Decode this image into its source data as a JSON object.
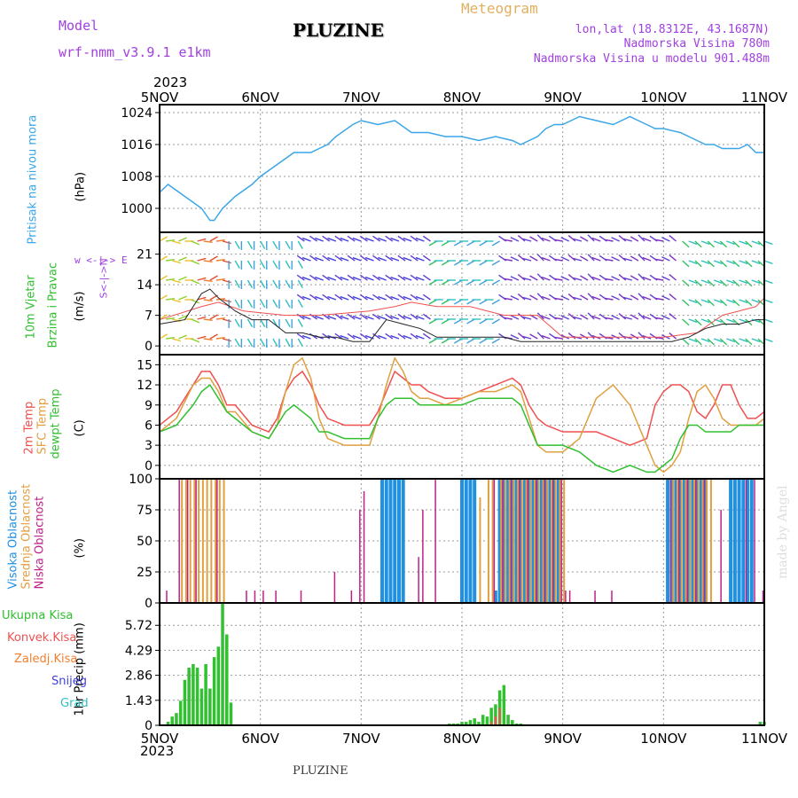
{
  "header": {
    "model_label": "Model",
    "model_name": "wrf-nmm_v3.9.1 e1km",
    "title": "PLUZINE",
    "meteogram": "Meteogram",
    "lonlat": "lon,lat (18.8312E, 43.1687N)",
    "elevation": "Nadmorska Visina 780m",
    "model_elevation": "Nadmorska Visina u modelu 901.488m",
    "year_top": "2023",
    "year_bottom": "2023",
    "footer_title": "PLUZINE",
    "credit": "made by Angel"
  },
  "colors": {
    "pressure": "#3aa6e8",
    "wind": "#30c030",
    "t2m": "#f05050",
    "sfc": "#e0a040",
    "dewpt": "#30c030",
    "high_cloud": "#2090e0",
    "mid_cloud": "#e0a040",
    "low_cloud": "#c0208a",
    "total_precip": "#30c030",
    "conv_precip": "#f05050",
    "ice": "#f08030",
    "snow": "#4040e0",
    "hail": "#30c0c0"
  },
  "panels": {
    "pressure": {
      "label": "Pritisak na nivou mora",
      "unit": "(hPa)"
    },
    "wind": {
      "label1": "10m Vjetar",
      "label2": "Brzina i Pravac",
      "unit": "(m/s)",
      "dir_legend": "w <-|-> E",
      "dir_legend_ns": "S<-|->N"
    },
    "temp": {
      "label_t2m": "2m Temp",
      "label_sfc": "SFC Temp",
      "label_dew": "dewpt Temp",
      "unit": "(C)"
    },
    "cloud": {
      "label_high": "Visoka Oblacnost",
      "label_mid": "Srednja Oblacnost",
      "label_low": "Niska Oblacnost",
      "unit": "(%)"
    },
    "precip": {
      "label_total": "Ukupna Kisa",
      "label_conv": "Konvek.Kisa",
      "label_ice": "Zaledj.Kisa",
      "label_snow": "Snijeg",
      "label_hail": "Grad",
      "unit": "1hr Precip (mm)"
    }
  },
  "chart_data": [
    {
      "type": "line",
      "title": "Pritisak na nivou mora",
      "ylabel": "(hPa)",
      "x_ticks": [
        "5NOV",
        "6NOV",
        "7NOV",
        "8NOV",
        "9NOV",
        "10NOV",
        "11NOV"
      ],
      "xlim": [
        0,
        144
      ],
      "yticks": [
        "1000",
        "1008",
        "1016",
        "1024"
      ],
      "ylim": [
        994,
        1026
      ],
      "series": [
        {
          "name": "Pritisak na nivou mora",
          "x": [
            0,
            2,
            6,
            10,
            12,
            13,
            15,
            18,
            22,
            24,
            28,
            32,
            36,
            40,
            42,
            46,
            48,
            52,
            56,
            60,
            64,
            68,
            70,
            72,
            76,
            80,
            84,
            86,
            88,
            90,
            92,
            94,
            96,
            98,
            100,
            104,
            108,
            110,
            112,
            114,
            116,
            118,
            120,
            124,
            128,
            130,
            132,
            134,
            136,
            138,
            140,
            142,
            144
          ],
          "values": [
            1004,
            1006,
            1003,
            1000,
            997,
            997,
            1000,
            1003,
            1006,
            1008,
            1011,
            1014,
            1014,
            1016,
            1018,
            1021,
            1022,
            1021,
            1022,
            1019,
            1019,
            1018,
            1018,
            1018,
            1017,
            1018,
            1017,
            1016,
            1017,
            1018,
            1020,
            1021,
            1021,
            1022,
            1023,
            1022,
            1021,
            1022,
            1023,
            1022,
            1021,
            1020,
            1020,
            1019,
            1017,
            1016,
            1016,
            1015,
            1015,
            1015,
            1016,
            1014,
            1014
          ]
        }
      ]
    },
    {
      "type": "line",
      "title": "10m Vjetar Brzina i Pravac",
      "ylabel": "(m/s)",
      "yticks": [
        "0",
        "7",
        "14",
        "21"
      ],
      "ylim": [
        -2,
        26
      ],
      "series": [
        {
          "name": "speed",
          "x": [
            0,
            6,
            10,
            12,
            14,
            18,
            22,
            26,
            30,
            34,
            38,
            42,
            46,
            50,
            54,
            58,
            62,
            66,
            70,
            74,
            78,
            82,
            86,
            90,
            94,
            98,
            102,
            106,
            110,
            114,
            118,
            122,
            126,
            130,
            134,
            138,
            142,
            144
          ],
          "values": [
            5,
            6,
            12,
            13,
            11,
            8,
            6,
            6,
            3,
            3,
            2,
            2,
            1,
            1,
            6,
            5,
            4,
            2,
            2,
            2,
            2,
            2,
            1,
            1,
            1,
            1,
            1,
            1,
            1,
            1,
            1,
            1,
            2,
            4,
            5,
            5,
            6,
            6
          ]
        },
        {
          "name": "gust",
          "x": [
            0,
            10,
            14,
            20,
            30,
            38,
            50,
            56,
            60,
            66,
            74,
            82,
            90,
            96,
            104,
            112,
            120,
            128,
            134,
            138,
            142,
            144
          ],
          "values": [
            6,
            9,
            10,
            8,
            7,
            7,
            8,
            9,
            10,
            9,
            9,
            7,
            7,
            2,
            2,
            2,
            2,
            3,
            7,
            8,
            9,
            11
          ]
        }
      ]
    },
    {
      "type": "line",
      "title": "Temp",
      "ylabel": "(C)",
      "yticks": [
        "0",
        "3",
        "6",
        "9",
        "12",
        "15"
      ],
      "ylim": [
        -2,
        16.5
      ],
      "series": [
        {
          "name": "2m Temp",
          "x": [
            0,
            4,
            8,
            10,
            12,
            14,
            16,
            18,
            22,
            26,
            28,
            30,
            32,
            34,
            36,
            38,
            40,
            44,
            48,
            50,
            52,
            54,
            56,
            58,
            60,
            62,
            64,
            68,
            72,
            76,
            80,
            84,
            86,
            88,
            90,
            92,
            96,
            100,
            104,
            108,
            112,
            116,
            118,
            120,
            122,
            124,
            126,
            128,
            130,
            132,
            134,
            136,
            138,
            140,
            142,
            144
          ],
          "values": [
            6,
            8,
            12,
            14,
            14,
            12,
            9,
            9,
            6,
            5,
            7,
            11,
            13,
            14,
            12,
            9,
            7,
            6,
            6,
            6,
            8,
            11,
            14,
            13,
            12,
            12,
            11,
            10,
            10,
            11,
            12,
            13,
            12,
            9,
            7,
            6,
            5,
            5,
            5,
            4,
            3,
            4,
            9,
            11,
            12,
            12,
            11,
            8,
            7,
            9,
            12,
            12,
            9,
            7,
            7,
            8
          ]
        },
        {
          "name": "SFC Temp",
          "x": [
            0,
            4,
            8,
            10,
            12,
            14,
            16,
            18,
            22,
            26,
            28,
            30,
            32,
            34,
            36,
            38,
            40,
            44,
            48,
            50,
            52,
            54,
            56,
            58,
            60,
            62,
            64,
            68,
            72,
            76,
            80,
            84,
            86,
            88,
            90,
            92,
            96,
            100,
            104,
            108,
            112,
            116,
            118,
            120,
            122,
            124,
            126,
            128,
            130,
            132,
            134,
            136,
            138,
            140,
            142,
            144
          ],
          "values": [
            5,
            7,
            12,
            13,
            13,
            11,
            8,
            8,
            5,
            4,
            6,
            11,
            15,
            16,
            13,
            7,
            4,
            3,
            3,
            3,
            7,
            12,
            16,
            14,
            11,
            10,
            10,
            9,
            10,
            11,
            11,
            12,
            11,
            7,
            3,
            2,
            2,
            4,
            10,
            12,
            9,
            3,
            0,
            -1,
            0,
            2,
            7,
            11,
            12,
            10,
            7,
            6,
            6,
            6,
            6,
            7
          ]
        },
        {
          "name": "dewpt Temp",
          "x": [
            0,
            4,
            8,
            10,
            12,
            14,
            16,
            18,
            22,
            26,
            28,
            30,
            32,
            34,
            36,
            38,
            40,
            44,
            48,
            50,
            52,
            54,
            56,
            58,
            60,
            62,
            64,
            68,
            72,
            76,
            80,
            84,
            86,
            88,
            90,
            92,
            96,
            100,
            104,
            108,
            112,
            116,
            118,
            120,
            122,
            124,
            126,
            128,
            130,
            132,
            134,
            136,
            138,
            140,
            142,
            144
          ],
          "values": [
            5,
            6,
            9,
            11,
            12,
            10,
            8,
            7,
            5,
            4,
            6,
            8,
            9,
            8,
            7,
            5,
            5,
            4,
            4,
            4,
            7,
            9,
            10,
            10,
            10,
            9,
            9,
            9,
            9,
            10,
            10,
            10,
            9,
            6,
            3,
            3,
            3,
            2,
            0,
            -1,
            0,
            -1,
            -1,
            0,
            1,
            4,
            6,
            6,
            5,
            5,
            5,
            5,
            6,
            6,
            6,
            6
          ]
        }
      ]
    },
    {
      "type": "bar",
      "title": "Oblacnost",
      "ylabel": "(%)",
      "yticks": [
        "0",
        "25",
        "50",
        "75",
        "100"
      ],
      "ylim": [
        0,
        100
      ],
      "series": [
        {
          "name": "Visoka Oblacnost",
          "x": [
            53,
            54,
            55,
            56,
            57,
            58,
            72,
            73,
            74,
            75,
            80,
            81,
            82,
            83,
            84,
            85,
            86,
            87,
            88,
            89,
            90,
            91,
            92,
            93,
            94,
            95,
            121,
            122,
            123,
            124,
            125,
            126,
            127,
            128,
            129,
            130,
            136,
            137,
            138,
            139,
            140,
            141
          ],
          "values": [
            100,
            100,
            100,
            100,
            100,
            100,
            100,
            100,
            100,
            100,
            10,
            100,
            100,
            100,
            100,
            100,
            100,
            100,
            100,
            100,
            100,
            100,
            100,
            100,
            100,
            100,
            100,
            100,
            100,
            100,
            100,
            100,
            100,
            100,
            100,
            100,
            100,
            100,
            100,
            100,
            100,
            100
          ]
        },
        {
          "name": "Srednja Oblacnost",
          "x": [
            5,
            6,
            7,
            8,
            9,
            10,
            11,
            12,
            13,
            14,
            15,
            76,
            78,
            79,
            81,
            82,
            83,
            84,
            85,
            86,
            87,
            88,
            89,
            90,
            91,
            92,
            93,
            94,
            95,
            96,
            122,
            123,
            124,
            125,
            126,
            127,
            128,
            129,
            130,
            131
          ],
          "values": [
            100,
            100,
            100,
            100,
            100,
            100,
            100,
            100,
            100,
            100,
            100,
            85,
            100,
            100,
            100,
            100,
            100,
            100,
            100,
            100,
            100,
            100,
            100,
            100,
            100,
            100,
            100,
            100,
            100,
            100,
            100,
            100,
            100,
            100,
            100,
            100,
            100,
            100,
            100,
            100
          ]
        },
        {
          "name": "Niska Oblacnost",
          "x": [
            2,
            5,
            7,
            9,
            14,
            21,
            23,
            25,
            28,
            34,
            42,
            46,
            48,
            49,
            62,
            63,
            66,
            80,
            82,
            84,
            86,
            88,
            90,
            92,
            94,
            96,
            97,
            98,
            104,
            108,
            122,
            124,
            126,
            128,
            130,
            134,
            140,
            142,
            144
          ],
          "values": [
            10,
            100,
            100,
            100,
            100,
            10,
            10,
            10,
            10,
            10,
            25,
            10,
            75,
            90,
            37,
            75,
            100,
            100,
            100,
            100,
            100,
            100,
            100,
            100,
            100,
            100,
            10,
            10,
            10,
            10,
            100,
            100,
            100,
            100,
            100,
            75,
            100,
            100,
            10
          ]
        }
      ]
    },
    {
      "type": "bar",
      "title": "1hr Precip",
      "ylabel": "1hr Precip (mm)",
      "yticks": [
        "0",
        "1.43",
        "2.86",
        "4.29",
        "5.72"
      ],
      "ylim": [
        0,
        7
      ],
      "series": [
        {
          "name": "Ukupna Kisa",
          "x": [
            2,
            3,
            4,
            5,
            6,
            7,
            8,
            9,
            10,
            11,
            12,
            13,
            14,
            15,
            16,
            17,
            69,
            70,
            71,
            72,
            73,
            74,
            75,
            76,
            77,
            78,
            79,
            80,
            81,
            82,
            83,
            84,
            85,
            86,
            143,
            144
          ],
          "values": [
            0.2,
            0.5,
            0.7,
            1.4,
            2.6,
            3.3,
            3.5,
            3.3,
            2.1,
            3.5,
            2.1,
            3.9,
            4.5,
            7.0,
            5.2,
            1.3,
            0.1,
            0.1,
            0.1,
            0.2,
            0.2,
            0.3,
            0.4,
            0.2,
            0.6,
            0.5,
            1.0,
            1.2,
            2.0,
            2.3,
            0.6,
            0.3,
            0.1,
            0.1,
            0.2,
            0.2
          ]
        },
        {
          "name": "Konvek.Kisa",
          "x": [
            79,
            80,
            81
          ],
          "values": [
            0.2,
            0.5,
            1.0
          ]
        }
      ]
    }
  ]
}
